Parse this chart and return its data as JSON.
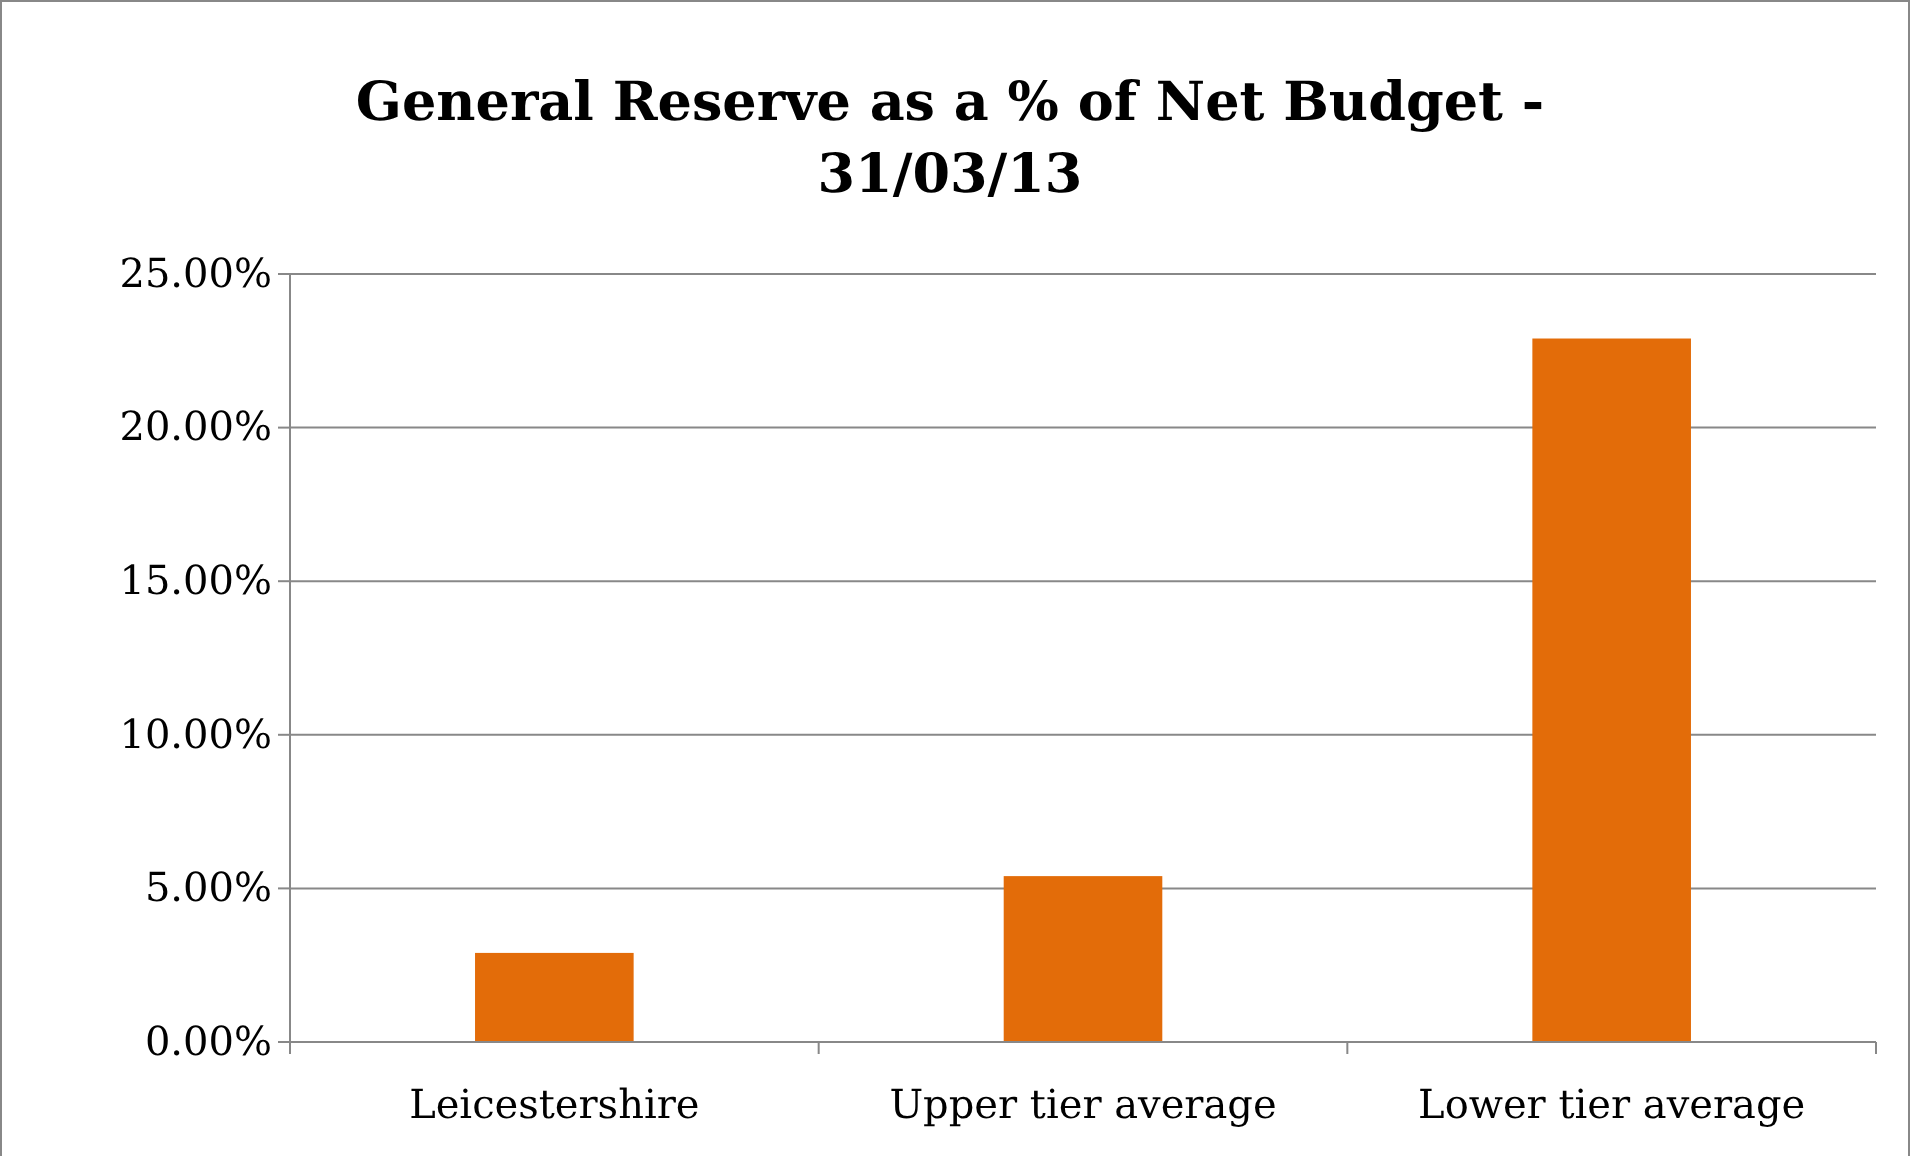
{
  "chart_data": {
    "type": "bar",
    "title": "General Reserve as a % of Net Budget - 31/03/13",
    "categories": [
      "Leicestershire",
      "Upper tier average",
      "Lower tier average"
    ],
    "values": [
      2.9,
      5.4,
      22.9
    ],
    "color": "#e36c09",
    "ylim": [
      0,
      25
    ],
    "yticks": [
      {
        "value": 0,
        "label": "0.00%"
      },
      {
        "value": 5,
        "label": "5.00%"
      },
      {
        "value": 10,
        "label": "10.00%"
      },
      {
        "value": 15,
        "label": "15.00%"
      },
      {
        "value": 20,
        "label": "20.00%"
      },
      {
        "value": 25,
        "label": "25.00%"
      }
    ],
    "grid": "y"
  }
}
